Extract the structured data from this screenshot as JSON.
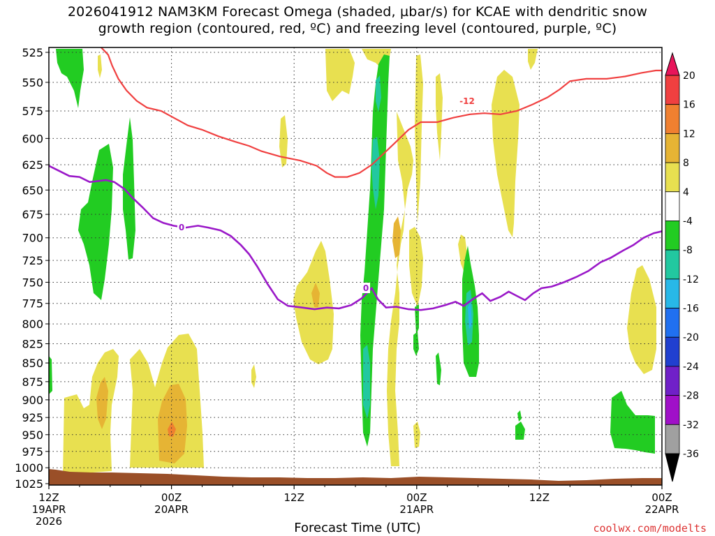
{
  "chart_data": {
    "type": "heatmap",
    "title": "2026041912 NAM3KM Forecast Omega (shaded, µbar/s) for KCAE with dendritic snow",
    "subtitle": "growth region (contoured, red, ºC) and freezing level (contoured, purple, ºC)",
    "xlabel": "Forecast Time (UTC)",
    "ylabel": "",
    "x_ticks": [
      {
        "hours": 0,
        "label": "12Z",
        "sub": "19APR",
        "sub2": "2026"
      },
      {
        "hours": 12,
        "label": "00Z",
        "sub": "20APR",
        "sub2": ""
      },
      {
        "hours": 24,
        "label": "12Z",
        "sub": "",
        "sub2": ""
      },
      {
        "hours": 36,
        "label": "00Z",
        "sub": "21APR",
        "sub2": ""
      },
      {
        "hours": 48,
        "label": "12Z",
        "sub": "",
        "sub2": ""
      },
      {
        "hours": 60,
        "label": "00Z",
        "sub": "22APR",
        "sub2": ""
      }
    ],
    "xlim_hours": [
      0,
      60
    ],
    "ylim_mb": [
      1025,
      520
    ],
    "y_ticks": [
      525,
      550,
      575,
      600,
      625,
      650,
      675,
      700,
      725,
      750,
      775,
      800,
      825,
      850,
      875,
      900,
      925,
      950,
      975,
      1000,
      1025
    ],
    "grid": true,
    "colorbar": {
      "levels": [
        20,
        16,
        12,
        8,
        4,
        -4,
        -8,
        -12,
        -16,
        -20,
        -24,
        -28,
        -32,
        -36
      ],
      "colors": [
        "#e8145a",
        "#f04040",
        "#f08030",
        "#e6b434",
        "#e8e050",
        "#ffffff",
        "#22cc22",
        "#22c8a0",
        "#28b8e8",
        "#2070f0",
        "#2040d0",
        "#7020c8",
        "#a010c8",
        "#a0a0a0",
        "#000000"
      ]
    },
    "series": [
      {
        "name": "-12",
        "color": "#f04040",
        "points": [
          [
            5.0,
            520
          ],
          [
            5.8,
            527
          ],
          [
            6.2,
            536
          ],
          [
            6.8,
            547
          ],
          [
            7.6,
            557
          ],
          [
            8.6,
            566
          ],
          [
            9.6,
            572
          ],
          [
            11.0,
            575
          ],
          [
            12.4,
            582
          ],
          [
            13.6,
            588
          ],
          [
            15.0,
            592
          ],
          [
            16.6,
            598
          ],
          [
            18.2,
            603
          ],
          [
            19.6,
            607
          ],
          [
            20.8,
            612
          ],
          [
            22.6,
            617
          ],
          [
            24.6,
            621
          ],
          [
            26.2,
            626
          ],
          [
            27.2,
            633
          ],
          [
            28.0,
            637
          ],
          [
            29.2,
            637
          ],
          [
            30.4,
            633
          ],
          [
            31.6,
            625
          ],
          [
            32.8,
            614
          ],
          [
            34.0,
            603
          ],
          [
            35.2,
            592
          ],
          [
            36.4,
            585
          ],
          [
            38.0,
            585
          ],
          [
            39.6,
            581
          ],
          [
            41.2,
            578
          ],
          [
            42.6,
            577
          ],
          [
            44.2,
            578
          ],
          [
            45.8,
            575
          ],
          [
            47.4,
            569
          ],
          [
            48.8,
            563
          ],
          [
            50.0,
            556
          ],
          [
            51.0,
            549
          ],
          [
            52.6,
            547
          ],
          [
            54.6,
            547
          ],
          [
            56.4,
            545
          ],
          [
            58.0,
            542
          ],
          [
            59.4,
            540
          ],
          [
            60.0,
            540
          ]
        ]
      },
      {
        "name": "0",
        "color": "#9a18c8",
        "points": [
          [
            0,
            626
          ],
          [
            0.6,
            629
          ],
          [
            1.2,
            632
          ],
          [
            2.0,
            636
          ],
          [
            3.0,
            637
          ],
          [
            4.0,
            642
          ],
          [
            4.8,
            641
          ],
          [
            5.6,
            640
          ],
          [
            6.4,
            642
          ],
          [
            7.4,
            649
          ],
          [
            8.2,
            658
          ],
          [
            9.2,
            668
          ],
          [
            10.2,
            679
          ],
          [
            11.2,
            684
          ],
          [
            12.2,
            687
          ],
          [
            13.4,
            689
          ],
          [
            14.6,
            687
          ],
          [
            15.6,
            689
          ],
          [
            16.8,
            692
          ],
          [
            17.8,
            698
          ],
          [
            18.8,
            708
          ],
          [
            19.6,
            718
          ],
          [
            20.4,
            732
          ],
          [
            21.4,
            752
          ],
          [
            22.4,
            770
          ],
          [
            23.4,
            778
          ],
          [
            24.8,
            780
          ],
          [
            26.0,
            782
          ],
          [
            27.2,
            780
          ],
          [
            28.4,
            781
          ],
          [
            29.6,
            777
          ],
          [
            30.6,
            769
          ],
          [
            31.6,
            757
          ],
          [
            32.2,
            770
          ],
          [
            33.0,
            780
          ],
          [
            34.0,
            779
          ],
          [
            35.2,
            782
          ],
          [
            36.4,
            783
          ],
          [
            37.6,
            781
          ],
          [
            38.8,
            777
          ],
          [
            39.8,
            773
          ],
          [
            40.6,
            778
          ],
          [
            41.6,
            769
          ],
          [
            42.4,
            763
          ],
          [
            43.2,
            772
          ],
          [
            44.2,
            767
          ],
          [
            45.0,
            761
          ],
          [
            45.8,
            766
          ],
          [
            46.6,
            771
          ],
          [
            47.4,
            763
          ],
          [
            48.2,
            757
          ],
          [
            49.2,
            755
          ],
          [
            50.4,
            750
          ],
          [
            51.6,
            744
          ],
          [
            52.8,
            737
          ],
          [
            54.0,
            727
          ],
          [
            55.0,
            722
          ],
          [
            56.2,
            714
          ],
          [
            57.2,
            708
          ],
          [
            58.2,
            700
          ],
          [
            59.2,
            695
          ],
          [
            60.0,
            693
          ]
        ]
      }
    ]
  },
  "texts": {
    "title1": "2026041912 NAM3KM Forecast Omega (shaded, µbar/s) for KCAE with dendritic snow",
    "title2": "growth region (contoured, red, ºC) and freezing level (contoured, purple, ºC)",
    "x_axis_title": "Forecast Time (UTC)",
    "credit": "coolwx.com/modelts"
  },
  "colors": {
    "terrain": "#9a4f28",
    "grid": "#303030"
  }
}
